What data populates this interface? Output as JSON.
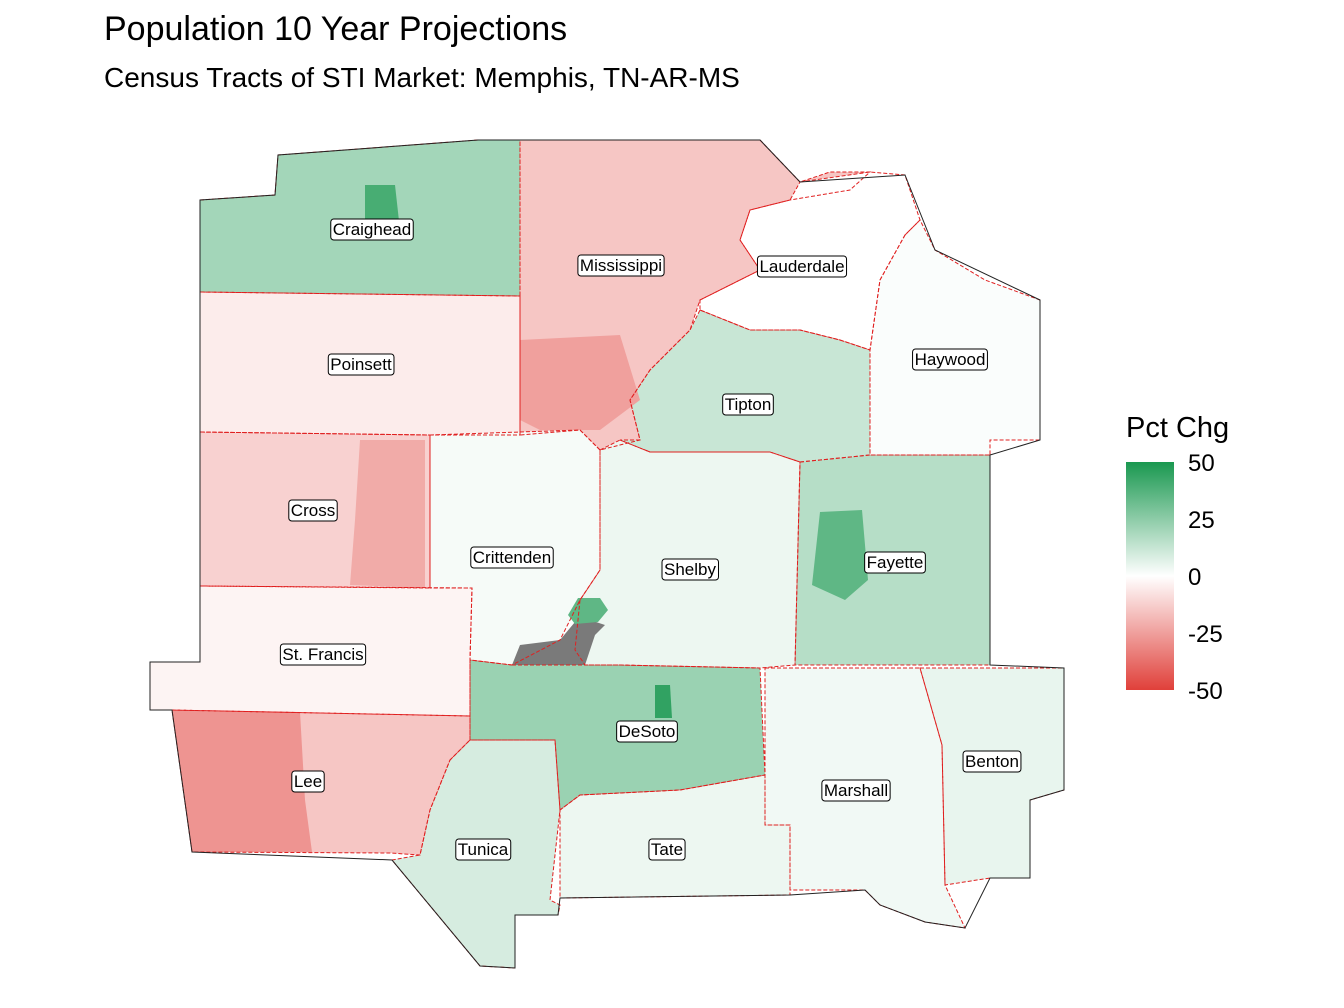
{
  "title": "Population 10 Year Projections",
  "subtitle": "Census Tracts of STI Market: Memphis, TN-AR-MS",
  "legend": {
    "title": "Pct Chg",
    "ticks": [
      "50",
      "25",
      "0",
      "-25",
      "-50"
    ],
    "range": [
      -50,
      50
    ],
    "colors": {
      "high": "#1a9850",
      "mid": "#ffffff",
      "low": "#e0403a",
      "na": "#7a7a7a"
    }
  },
  "counties": [
    {
      "name": "Craighead",
      "pct_chg": 20
    },
    {
      "name": "Mississippi",
      "pct_chg": -15
    },
    {
      "name": "Lauderdale",
      "pct_chg": 0
    },
    {
      "name": "Haywood",
      "pct_chg": 1
    },
    {
      "name": "Poinsett",
      "pct_chg": -5
    },
    {
      "name": "Tipton",
      "pct_chg": 12
    },
    {
      "name": "Cross",
      "pct_chg": -12
    },
    {
      "name": "Crittenden",
      "pct_chg": 2
    },
    {
      "name": "Shelby",
      "pct_chg": 4
    },
    {
      "name": "Fayette",
      "pct_chg": 16
    },
    {
      "name": "St. Francis",
      "pct_chg": -3
    },
    {
      "name": "DeSoto",
      "pct_chg": 22
    },
    {
      "name": "Lee",
      "pct_chg": -15
    },
    {
      "name": "Benton",
      "pct_chg": 5
    },
    {
      "name": "Marshall",
      "pct_chg": 3
    },
    {
      "name": "Tunica",
      "pct_chg": 9
    },
    {
      "name": "Tate",
      "pct_chg": 4
    }
  ]
}
